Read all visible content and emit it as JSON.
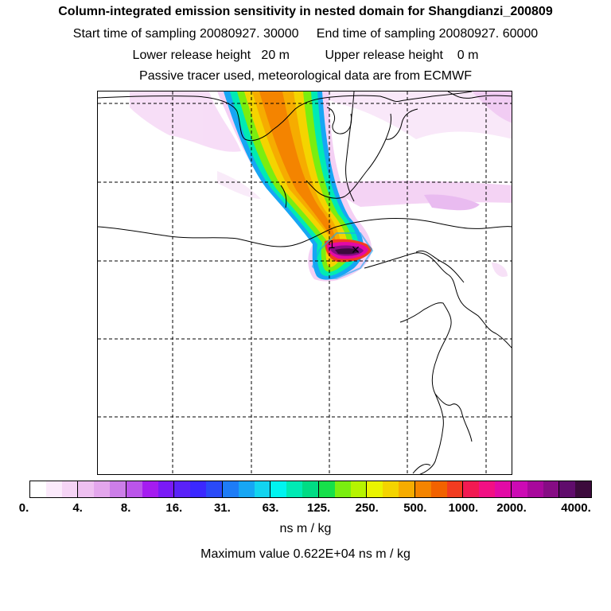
{
  "header": {
    "title": "Column-integrated emission sensitivity in nested domain for Shangdianzi_200809",
    "sampling_line": "Start time of sampling 20080927. 30000     End time of sampling 20080927. 60000",
    "release_line": "Lower release height   20 m          Upper release height    0 m",
    "tracer_line": "Passive tracer used, meteorological data are from ECMWF"
  },
  "map": {
    "release_marker_label": "1",
    "release_marker_symbol": "×"
  },
  "colorbar": {
    "colors": [
      "#ffffff",
      "#fbeafb",
      "#f5d4f5",
      "#eec0f0",
      "#e3a6ec",
      "#cc7ee8",
      "#bb55ea",
      "#a51cf0",
      "#7a1af6",
      "#5a22f8",
      "#3b28ff",
      "#2a4af8",
      "#1e7cf6",
      "#17a6f4",
      "#12d4f0",
      "#00f4f0",
      "#00eab4",
      "#00dc84",
      "#16e04a",
      "#7aee10",
      "#b6f400",
      "#eaf400",
      "#f4d400",
      "#f6ac00",
      "#f48400",
      "#f26200",
      "#f23c20",
      "#f21a52",
      "#f21084",
      "#e20aa6",
      "#cc0ab4",
      "#a8089c",
      "#860c84",
      "#600c6c",
      "#3c0a3c"
    ],
    "ticks": [
      "0.",
      "4.",
      "8.",
      "16.",
      "31.",
      "63.",
      "125.",
      "250.",
      "500.",
      "1000.",
      "2000.",
      "4000."
    ],
    "units": "ns m / kg",
    "max_label": "Maximum value  0.622E+04 ns m / kg"
  }
}
